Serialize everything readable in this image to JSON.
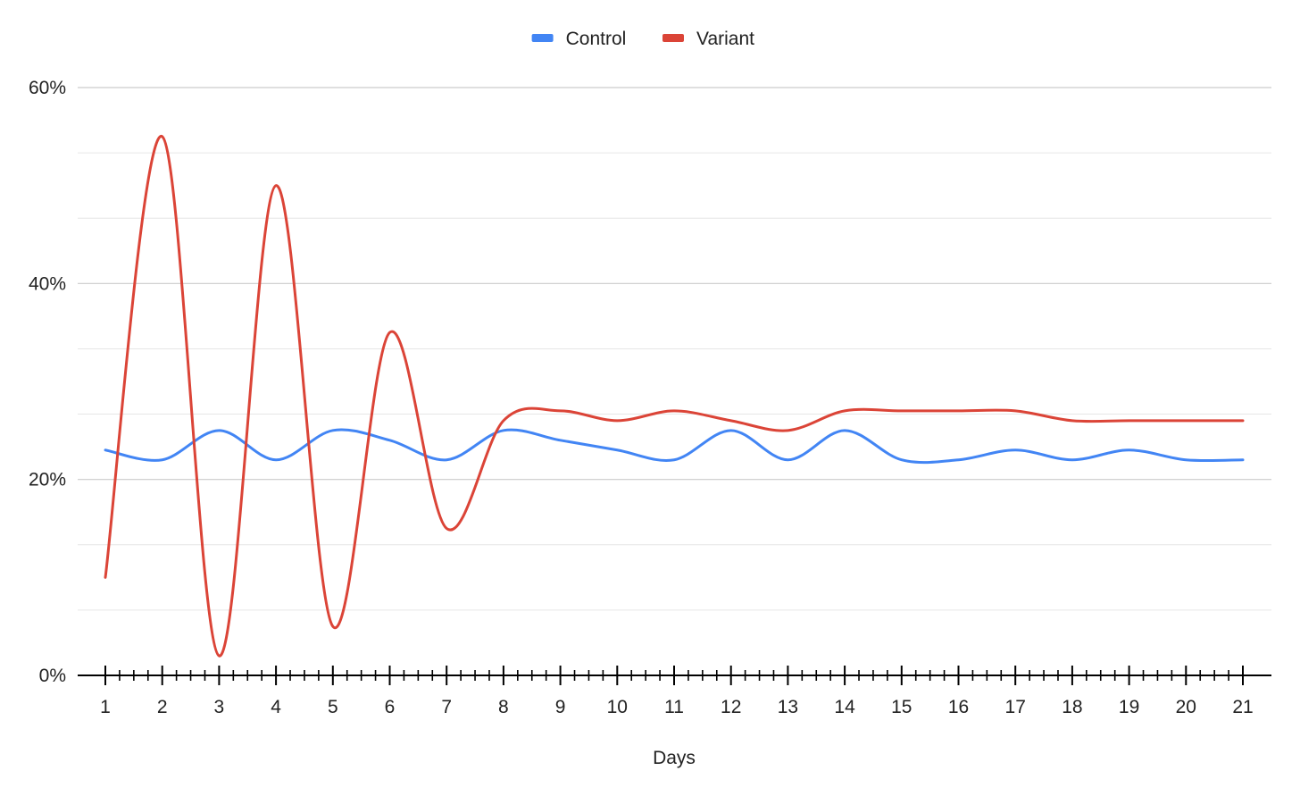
{
  "chart_data": {
    "type": "line",
    "title": "",
    "xlabel": "Days",
    "ylabel": "",
    "x": [
      1,
      2,
      3,
      4,
      5,
      6,
      7,
      8,
      9,
      10,
      11,
      12,
      13,
      14,
      15,
      16,
      17,
      18,
      19,
      20,
      21
    ],
    "series": [
      {
        "name": "Control",
        "color": "#4285f4",
        "values": [
          23,
          22,
          25,
          22,
          25,
          24,
          22,
          25,
          24,
          23,
          22,
          25,
          22,
          25,
          22,
          22,
          23,
          22,
          23,
          22,
          22
        ]
      },
      {
        "name": "Variant",
        "color": "#db4437",
        "values": [
          10,
          55,
          2,
          50,
          5,
          35,
          15,
          26,
          27,
          26,
          27,
          26,
          25,
          27,
          27,
          27,
          27,
          26,
          26,
          26,
          26
        ]
      }
    ],
    "ylim": [
      0,
      60
    ],
    "yticks": [
      0,
      20,
      40,
      60
    ],
    "ytick_labels": [
      "0%",
      "20%",
      "40%",
      "60%"
    ],
    "grid": true,
    "legend_position": "top-center",
    "smooth": true
  }
}
